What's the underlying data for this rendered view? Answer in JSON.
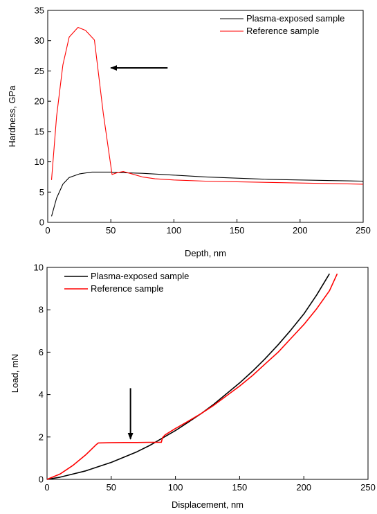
{
  "chart_data": [
    {
      "type": "line",
      "xlabel": "Depth, nm",
      "ylabel": "Hardness, GPa",
      "xlim": [
        0,
        250
      ],
      "ylim": [
        0,
        35
      ],
      "xticks": [
        0,
        50,
        100,
        150,
        200,
        250
      ],
      "yticks": [
        0,
        5,
        10,
        15,
        20,
        25,
        30,
        35
      ],
      "grid": false,
      "legend_position": "top-right",
      "series": [
        {
          "name": "Plasma-exposed sample",
          "color": "#000000",
          "x": [
            3,
            7,
            12,
            17,
            25,
            35,
            50,
            60,
            75,
            100,
            125,
            150,
            175,
            200,
            225,
            250
          ],
          "y": [
            1.0,
            4.0,
            6.3,
            7.4,
            8.0,
            8.3,
            8.3,
            8.2,
            8.1,
            7.8,
            7.5,
            7.3,
            7.1,
            7.0,
            6.9,
            6.8
          ]
        },
        {
          "name": "Reference sample",
          "color": "#ff0000",
          "x": [
            3,
            7,
            12,
            17,
            24,
            30,
            37,
            44,
            51,
            55,
            60,
            65,
            75,
            85,
            100,
            125,
            150,
            200,
            250
          ],
          "y": [
            7.0,
            17.5,
            26.0,
            30.6,
            32.2,
            31.7,
            30.1,
            18.0,
            7.9,
            8.2,
            8.4,
            8.1,
            7.5,
            7.2,
            7.0,
            6.8,
            6.7,
            6.5,
            6.3
          ]
        }
      ],
      "annotations": [
        {
          "type": "arrow",
          "direction": "left",
          "from": [
            95,
            25.5
          ],
          "to": [
            50,
            25.5
          ]
        }
      ]
    },
    {
      "type": "line",
      "xlabel": "Displacement, nm",
      "ylabel": "Load, mN",
      "xlim": [
        0,
        250
      ],
      "ylim": [
        0,
        10
      ],
      "xticks": [
        0,
        50,
        100,
        150,
        200,
        250
      ],
      "yticks": [
        0,
        2,
        4,
        6,
        8,
        10
      ],
      "grid": false,
      "legend_position": "top-left",
      "series": [
        {
          "name": "Plasma-exposed sample",
          "color": "#000000",
          "x": [
            0,
            10,
            20,
            30,
            40,
            50,
            60,
            70,
            80,
            90,
            100,
            110,
            120,
            130,
            140,
            150,
            160,
            170,
            180,
            190,
            200,
            210,
            220
          ],
          "y": [
            0,
            0.1,
            0.25,
            0.4,
            0.6,
            0.8,
            1.05,
            1.3,
            1.6,
            1.95,
            2.3,
            2.7,
            3.1,
            3.55,
            4.05,
            4.55,
            5.1,
            5.7,
            6.35,
            7.05,
            7.8,
            8.7,
            9.7
          ]
        },
        {
          "name": "Reference sample",
          "color": "#ff0000",
          "x": [
            0,
            10,
            20,
            30,
            38,
            40,
            50,
            60,
            70,
            80,
            89,
            90,
            92,
            100,
            110,
            120,
            130,
            140,
            150,
            160,
            170,
            180,
            190,
            200,
            210,
            220,
            226
          ],
          "y": [
            0,
            0.25,
            0.65,
            1.15,
            1.62,
            1.72,
            1.73,
            1.74,
            1.74,
            1.75,
            1.75,
            1.97,
            2.1,
            2.4,
            2.75,
            3.1,
            3.5,
            3.95,
            4.4,
            4.9,
            5.45,
            6.0,
            6.65,
            7.3,
            8.05,
            8.9,
            9.7
          ]
        }
      ],
      "annotations": [
        {
          "type": "arrow",
          "direction": "down",
          "from": [
            65,
            4.3
          ],
          "to": [
            65,
            1.9
          ]
        }
      ]
    }
  ]
}
